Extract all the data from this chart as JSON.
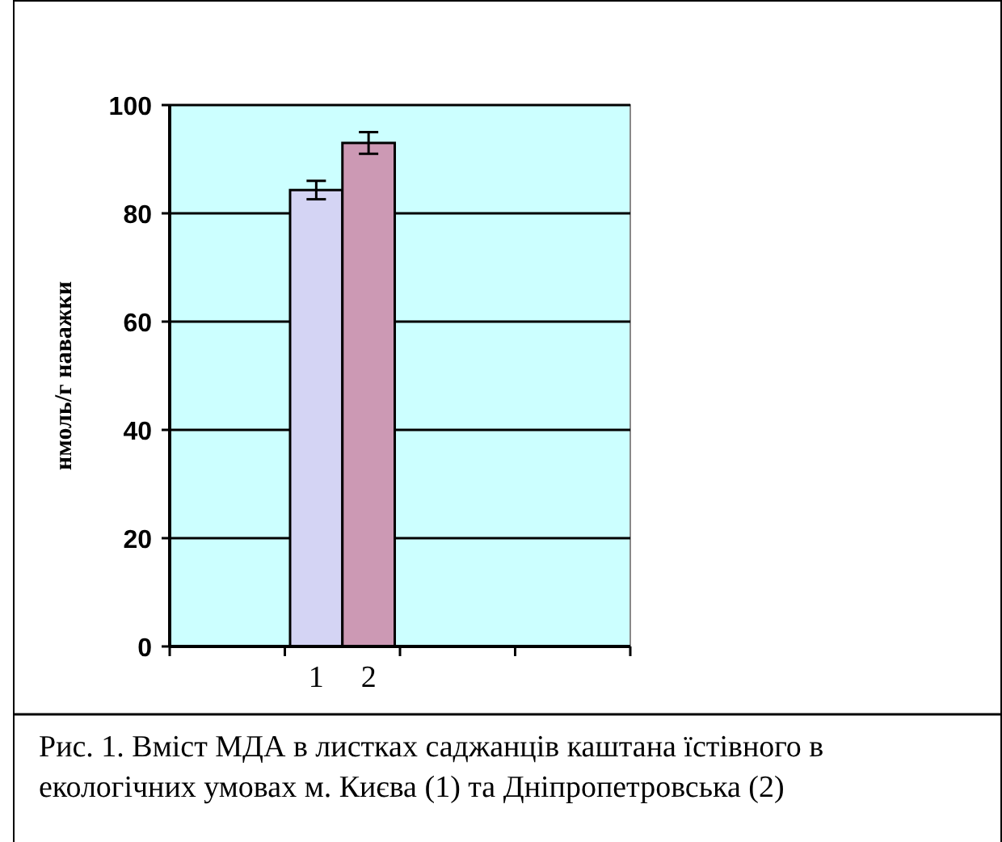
{
  "chart_data": {
    "type": "bar",
    "categories": [
      null,
      null,
      null,
      null
    ],
    "series": [
      {
        "name": "1",
        "color": "#d4d4f4",
        "values": [
          null,
          84.3,
          null,
          null
        ],
        "errors": [
          null,
          1.7,
          null,
          null
        ]
      },
      {
        "name": "2",
        "color": "#cc99b4",
        "values": [
          null,
          93,
          null,
          null
        ],
        "errors": [
          null,
          2,
          null,
          null
        ]
      }
    ],
    "ylabel": "нмоль/г наважки",
    "ylim": [
      0,
      100
    ],
    "yticks": [
      0,
      20,
      40,
      60,
      80,
      100
    ],
    "grid": "y",
    "legend": "bottom",
    "annotations": [
      "Рис. 1. Вміст МДА в листках саджанців каштана їстівного в екологічних умовах м. Києва (1) та Дніпропетровська (2)"
    ]
  }
}
